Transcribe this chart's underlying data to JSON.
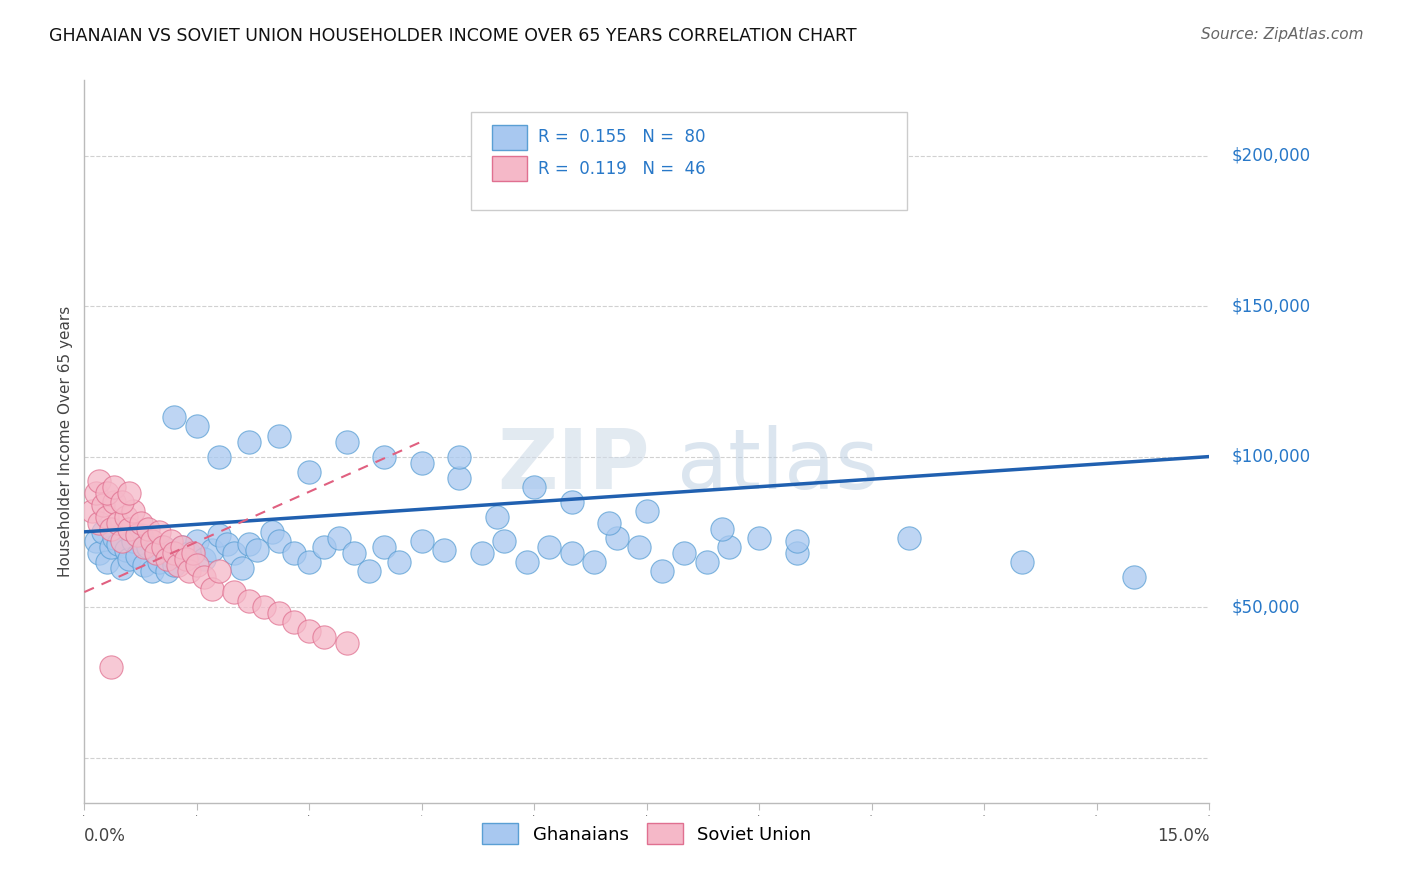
{
  "title": "GHANAIAN VS SOVIET UNION HOUSEHOLDER INCOME OVER 65 YEARS CORRELATION CHART",
  "source": "Source: ZipAtlas.com",
  "ylabel": "Householder Income Over 65 years",
  "xlim": [
    0.0,
    15.0
  ],
  "ylim": [
    -15000,
    225000
  ],
  "yticks": [
    0,
    50000,
    100000,
    150000,
    200000
  ],
  "ytick_labels": [
    "",
    "$50,000",
    "$100,000",
    "$150,000",
    "$200,000"
  ],
  "watermark": "ZIPatlas",
  "legend1_r": "0.155",
  "legend1_n": "80",
  "legend2_r": "0.119",
  "legend2_n": "46",
  "blue_scatter_color": "#a8c8f0",
  "blue_scatter_edge": "#5a9fd4",
  "pink_scatter_color": "#f5b8c8",
  "pink_scatter_edge": "#e07090",
  "blue_line_color": "#2060b0",
  "pink_line_color": "#e06080",
  "label_color": "#2878c8",
  "grid_color": "#cccccc",
  "bg_color": "#ffffff",
  "ghanaians_x": [
    0.15,
    0.2,
    0.25,
    0.3,
    0.35,
    0.4,
    0.45,
    0.5,
    0.55,
    0.6,
    0.65,
    0.7,
    0.75,
    0.8,
    0.85,
    0.9,
    0.95,
    1.0,
    1.05,
    1.1,
    1.15,
    1.2,
    1.3,
    1.4,
    1.5,
    1.6,
    1.7,
    1.8,
    1.9,
    2.0,
    2.1,
    2.2,
    2.3,
    2.5,
    2.6,
    2.8,
    3.0,
    3.2,
    3.4,
    3.6,
    3.8,
    4.0,
    4.2,
    4.5,
    4.8,
    5.0,
    5.3,
    5.6,
    5.9,
    6.2,
    6.5,
    6.8,
    7.1,
    7.4,
    7.7,
    8.0,
    8.3,
    8.6,
    9.0,
    9.5,
    1.2,
    1.5,
    1.8,
    2.2,
    2.6,
    3.0,
    3.5,
    4.0,
    4.5,
    5.0,
    5.5,
    6.0,
    6.5,
    7.0,
    7.5,
    8.5,
    9.5,
    11.0,
    12.5,
    14.0
  ],
  "ghanaians_y": [
    72000,
    68000,
    75000,
    65000,
    70000,
    73000,
    71000,
    63000,
    69000,
    66000,
    72000,
    67000,
    74000,
    64000,
    70000,
    62000,
    68000,
    65000,
    70000,
    62000,
    67000,
    64000,
    70000,
    68000,
    72000,
    66000,
    69000,
    74000,
    71000,
    68000,
    63000,
    71000,
    69000,
    75000,
    72000,
    68000,
    65000,
    70000,
    73000,
    68000,
    62000,
    70000,
    65000,
    72000,
    69000,
    93000,
    68000,
    72000,
    65000,
    70000,
    68000,
    65000,
    73000,
    70000,
    62000,
    68000,
    65000,
    70000,
    73000,
    68000,
    113000,
    110000,
    100000,
    105000,
    107000,
    95000,
    105000,
    100000,
    98000,
    100000,
    80000,
    90000,
    85000,
    78000,
    82000,
    76000,
    72000,
    73000,
    65000,
    60000
  ],
  "soviet_x": [
    0.1,
    0.15,
    0.2,
    0.25,
    0.3,
    0.35,
    0.4,
    0.45,
    0.5,
    0.55,
    0.6,
    0.65,
    0.7,
    0.75,
    0.8,
    0.85,
    0.9,
    0.95,
    1.0,
    1.05,
    1.1,
    1.15,
    1.2,
    1.25,
    1.3,
    1.35,
    1.4,
    1.45,
    1.5,
    1.6,
    1.7,
    1.8,
    2.0,
    2.2,
    2.4,
    2.6,
    2.8,
    3.0,
    3.2,
    3.5,
    0.2,
    0.3,
    0.4,
    0.5,
    0.6,
    0.35
  ],
  "soviet_y": [
    82000,
    88000,
    78000,
    84000,
    80000,
    76000,
    85000,
    78000,
    72000,
    80000,
    76000,
    82000,
    74000,
    78000,
    70000,
    76000,
    72000,
    68000,
    75000,
    70000,
    66000,
    72000,
    68000,
    64000,
    70000,
    66000,
    62000,
    68000,
    64000,
    60000,
    56000,
    62000,
    55000,
    52000,
    50000,
    48000,
    45000,
    42000,
    40000,
    38000,
    92000,
    88000,
    90000,
    85000,
    88000,
    30000
  ],
  "blue_trend_x": [
    0,
    15
  ],
  "blue_trend_y": [
    75000,
    100000
  ],
  "pink_trend_x": [
    0,
    4.5
  ],
  "pink_trend_y": [
    55000,
    105000
  ]
}
